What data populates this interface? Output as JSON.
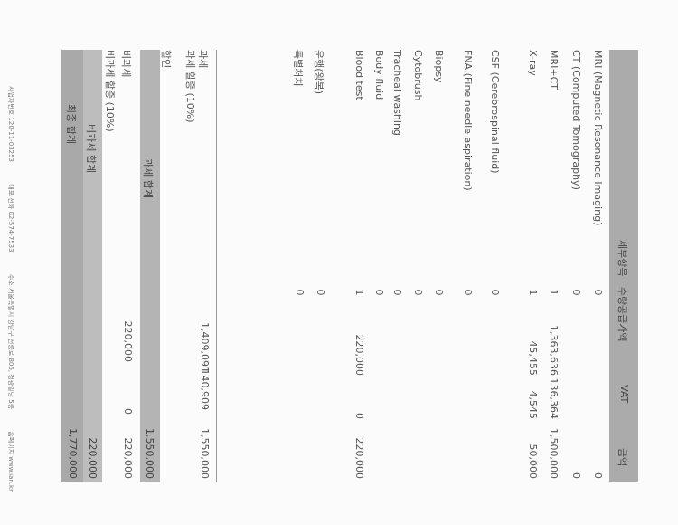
{
  "table": {
    "headers": {
      "item": "세부항목",
      "qty": "수량",
      "supply": "공급가액",
      "vat": "VAT",
      "amount": "금액"
    },
    "rows": [
      {
        "item": "MRI (Magnetic Resonance Imaging)",
        "qty": "0",
        "supply": "",
        "vat": "",
        "amount": "0"
      },
      {
        "item": "CT (Computed Tomography)",
        "qty": "0",
        "supply": "",
        "vat": "",
        "amount": "0"
      },
      {
        "item": "MRI+CT",
        "qty": "1",
        "supply": "1,363,636",
        "vat": "136,364",
        "amount": "1,500,000"
      },
      {
        "item": "X-ray",
        "qty": "1",
        "supply": "45,455",
        "vat": "4,545",
        "amount": "50,000"
      },
      {
        "item": "CSF (Cerebrospinal fluid)",
        "qty": "0",
        "supply": "",
        "vat": "",
        "amount": ""
      },
      {
        "item": "FNA (Fine needle aspiration)",
        "qty": "0",
        "supply": "",
        "vat": "",
        "amount": ""
      },
      {
        "item": "Biopsy",
        "qty": "0",
        "supply": "",
        "vat": "",
        "amount": ""
      },
      {
        "item": "Cytobrush",
        "qty": "0",
        "supply": "",
        "vat": "",
        "amount": ""
      },
      {
        "item": "Tracheal washing",
        "qty": "0",
        "supply": "",
        "vat": "",
        "amount": ""
      },
      {
        "item": "Body fluid",
        "qty": "0",
        "supply": "",
        "vat": "",
        "amount": ""
      },
      {
        "item": "Blood test",
        "qty": "1",
        "supply": "220,000",
        "vat": "0",
        "amount": "220,000"
      },
      {
        "item": "운행(왕복)",
        "qty": "0",
        "supply": "",
        "vat": "",
        "amount": ""
      },
      {
        "item": "특별처치",
        "qty": "0",
        "supply": "",
        "vat": "",
        "amount": ""
      }
    ]
  },
  "summary": {
    "taxable": {
      "label": "과세",
      "supply": "1,409,091",
      "vat": "140,909",
      "amount": "1,550,000"
    },
    "taxable_surcharge": {
      "label": "과세 할증 (10%)"
    },
    "discount": {
      "label": "할인"
    },
    "taxable_total": {
      "label": "과세 합계",
      "amount": "1,550,000"
    },
    "nontaxable": {
      "label": "비과세",
      "supply": "220,000",
      "vat": "0",
      "amount": "220,000"
    },
    "nontaxable_surcharge": {
      "label": "비과세 할증 (10%)"
    },
    "nontaxable_total": {
      "label": "비과세 합계",
      "amount": "220,000"
    },
    "final_total": {
      "label": "최종 합계",
      "amount": "1,770,000"
    }
  },
  "footer": {
    "business_no": "사업자번호 120-11-03253",
    "phone": "대표 전화 02-574-7533",
    "address": "주소 서울특별시 강남구 선릉로 806, 청광빌딩 5층",
    "homepage": "홈페이지 www.ian.kr"
  }
}
